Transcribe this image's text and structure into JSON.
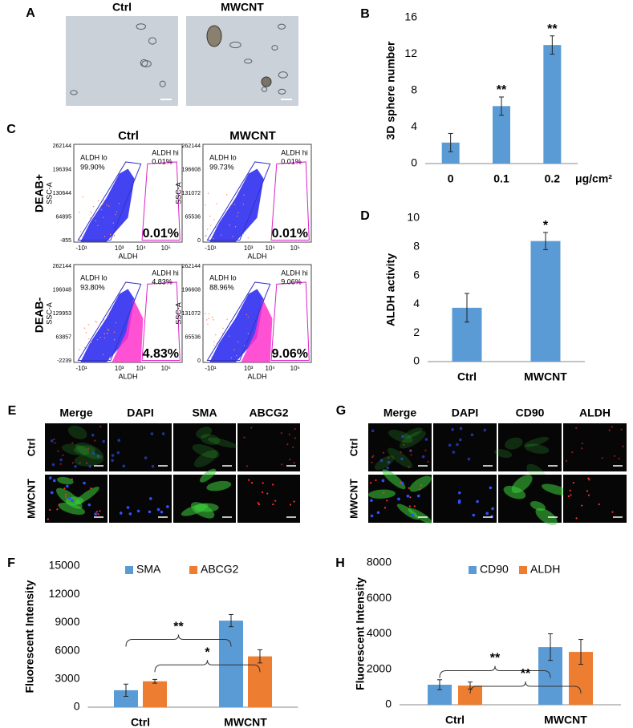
{
  "panel_a": {
    "label": "A",
    "columns": [
      "Ctrl",
      "MWCNT"
    ]
  },
  "panel_c": {
    "label": "C",
    "columns": [
      "Ctrl",
      "MWCNT"
    ],
    "rows": [
      "DEAB+",
      "DEAB-"
    ],
    "plots": [
      {
        "ylabel": "SSC-A",
        "xlabel": "ALDH",
        "yticks": [
          "262144",
          "196394",
          "130644",
          "64895",
          "-855"
        ],
        "xticks": [
          "-10¹",
          "10³",
          "10⁴",
          "10⁵"
        ],
        "lo_label": "ALDH lo",
        "lo_pct": "99.90%",
        "hi_label": "ALDH hi",
        "hi_pct": "0.01%",
        "result": "0.01%"
      },
      {
        "ylabel": "SSC-A",
        "xlabel": "ALDH",
        "yticks": [
          "262144",
          "196608",
          "131072",
          "65536",
          "0"
        ],
        "xticks": [
          "-10¹",
          "10³",
          "10⁴",
          "10⁵"
        ],
        "lo_label": "ALDH lo",
        "lo_pct": "99.73%",
        "hi_label": "ALDH hi",
        "hi_pct": "0.01%",
        "result": "0.01%"
      },
      {
        "ylabel": "SSC-A",
        "xlabel": "ALDH",
        "yticks": [
          "262144",
          "196048",
          "129953",
          "63857",
          "-2239"
        ],
        "xticks": [
          "-10¹",
          "10³",
          "10⁴",
          "10⁵"
        ],
        "lo_label": "ALDH lo",
        "lo_pct": "93.80%",
        "hi_label": "ALDH hi",
        "hi_pct": "4.83%",
        "result": "4.83%"
      },
      {
        "ylabel": "SSC-A",
        "xlabel": "ALDH",
        "yticks": [
          "262144",
          "196608",
          "131072",
          "65536",
          "0"
        ],
        "xticks": [
          "-10¹",
          "10³",
          "10⁴",
          "10⁵"
        ],
        "lo_label": "ALDH lo",
        "lo_pct": "88.96%",
        "hi_label": "ALDH hi",
        "hi_pct": "9.06%",
        "result": "9.06%"
      }
    ]
  },
  "panel_e": {
    "label": "E",
    "columns": [
      "Merge",
      "DAPI",
      "SMA",
      "ABCG2"
    ],
    "rows": [
      "Ctrl",
      "MWCNT"
    ]
  },
  "panel_g": {
    "label": "G",
    "columns": [
      "Merge",
      "DAPI",
      "CD90",
      "ALDH"
    ],
    "rows": [
      "Ctrl",
      "MWCNT"
    ]
  },
  "chart_data": [
    {
      "type": "bar",
      "label": "B",
      "ylabel": "3D sphere number",
      "categories": [
        "0",
        "0.1",
        "0.2"
      ],
      "xunit": "μg/cm²",
      "values": [
        2.3,
        6.3,
        13.0
      ],
      "errors": [
        1.0,
        1.0,
        1.0
      ],
      "significance": [
        null,
        "**",
        "**"
      ],
      "color": "#5b9bd5",
      "ylim": [
        0,
        16
      ],
      "yticks": [
        0,
        4,
        8,
        12,
        16
      ]
    },
    {
      "type": "bar",
      "label": "D",
      "ylabel": "ALDH activity",
      "categories": [
        "Ctrl",
        "MWCNT"
      ],
      "values": [
        3.75,
        8.4
      ],
      "errors": [
        1.0,
        0.6
      ],
      "significance": [
        null,
        "*"
      ],
      "color": "#5b9bd5",
      "ylim": [
        0,
        10
      ],
      "yticks": [
        0,
        2,
        4,
        6,
        8,
        10
      ]
    },
    {
      "type": "grouped_bar",
      "label": "F",
      "ylabel": "Fluorescent Intensity",
      "categories": [
        "Ctrl",
        "MWCNT"
      ],
      "series": [
        {
          "name": "SMA",
          "color": "#5b9bd5",
          "values": [
            1800,
            9200
          ],
          "errors": [
            650,
            650
          ]
        },
        {
          "name": "ABCG2",
          "color": "#ed7d31",
          "values": [
            2750,
            5400
          ],
          "errors": [
            200,
            700
          ]
        }
      ],
      "comparisons": [
        "**",
        "*"
      ],
      "ylim": [
        0,
        15000
      ],
      "yticks": [
        0,
        3000,
        6000,
        9000,
        12000,
        15000
      ]
    },
    {
      "type": "grouped_bar",
      "label": "H",
      "ylabel": "Fluorescent Intensity",
      "categories": [
        "Ctrl",
        "MWCNT"
      ],
      "series": [
        {
          "name": "CD90",
          "color": "#5b9bd5",
          "values": [
            1130,
            3250
          ],
          "errors": [
            280,
            750
          ]
        },
        {
          "name": "ALDH",
          "color": "#ed7d31",
          "values": [
            1080,
            2980
          ],
          "errors": [
            200,
            700
          ]
        }
      ],
      "comparisons": [
        "**",
        "**"
      ],
      "ylim": [
        0,
        8000
      ],
      "yticks": [
        0,
        2000,
        4000,
        6000,
        8000
      ]
    }
  ]
}
